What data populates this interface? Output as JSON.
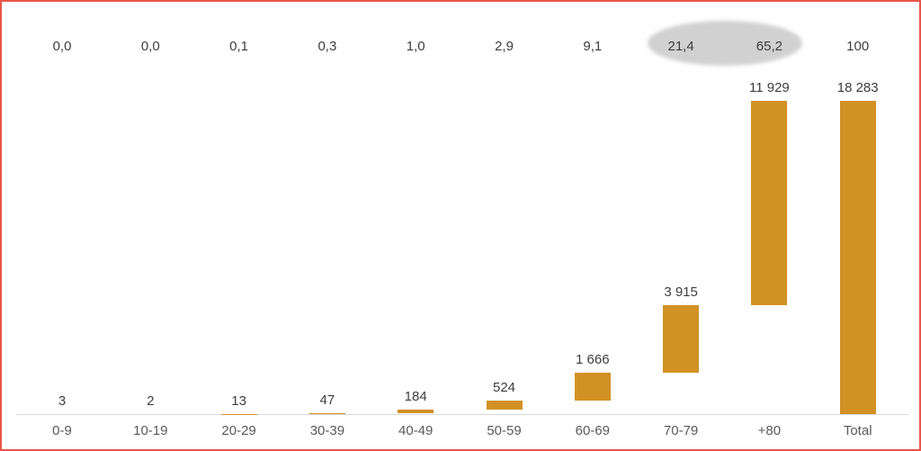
{
  "frame": {
    "border_color": "#e8564b",
    "background_color": "#ffffff"
  },
  "chart_data": {
    "type": "bar",
    "subtype": "waterfall",
    "title": "",
    "xlabel": "",
    "ylabel": "",
    "legend": "none",
    "grid": false,
    "ylim": [
      0,
      18283
    ],
    "categories": [
      "0-9",
      "10-19",
      "20-29",
      "30-39",
      "40-49",
      "50-59",
      "60-69",
      "70-79",
      "+80",
      "Total"
    ],
    "values": [
      3,
      2,
      13,
      47,
      184,
      524,
      1666,
      3915,
      11929,
      18283
    ],
    "value_labels": [
      "3",
      "2",
      "13",
      "47",
      "184",
      "524",
      "1 666",
      "3 915",
      "11 929",
      "18 283"
    ],
    "cumulative": [
      3,
      5,
      18,
      65,
      249,
      773,
      2439,
      6354,
      18283,
      18283
    ],
    "percent_labels": [
      "0,0",
      "0,0",
      "0,1",
      "0,3",
      "1,0",
      "2,9",
      "9,1",
      "21,4",
      "65,2",
      "100"
    ],
    "total_index": 9,
    "bar_color": "#d29123",
    "axis_color": "#d8d8d8",
    "value_label_color": "#3d3d3d",
    "percent_label_color": "#3d3d3d",
    "x_label_color": "#595959",
    "highlight": {
      "shape": "ellipse",
      "color": "#d1d1d1",
      "highlighted_labels": [
        "21,4",
        "65,2"
      ],
      "highlighted_indices": [
        7,
        8
      ]
    }
  }
}
